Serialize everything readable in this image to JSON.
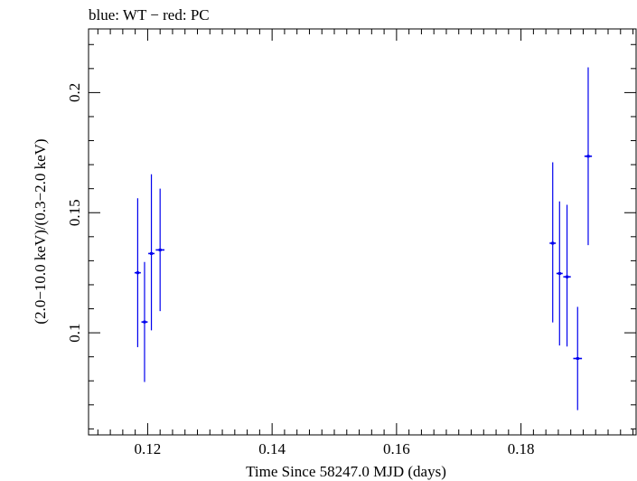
{
  "chart_data": {
    "type": "scatter",
    "title": "blue: WT − red: PC",
    "xlabel": "Time Since 58247.0 MJD (days)",
    "ylabel": "(2.0−10.0 keV)/(0.3−2.0 keV)",
    "xlim": [
      0.1105,
      0.1985
    ],
    "ylim": [
      0.0575,
      0.2265
    ],
    "x_ticks": [
      0.12,
      0.14,
      0.16,
      0.18
    ],
    "x_tick_labels": [
      "0.12",
      "0.14",
      "0.16",
      "0.18"
    ],
    "y_ticks": [
      0.1,
      0.15,
      0.2
    ],
    "y_tick_labels": [
      "0.1",
      "0.15",
      "0.2"
    ],
    "grid": false,
    "series": [
      {
        "name": "WT",
        "color": "#0000ee",
        "points": [
          {
            "x": 0.1184,
            "xerr": 0.0005,
            "y": 0.125,
            "yerr_low": 0.031,
            "yerr_high": 0.031
          },
          {
            "x": 0.1195,
            "xerr": 0.0005,
            "y": 0.1045,
            "yerr_low": 0.025,
            "yerr_high": 0.025
          },
          {
            "x": 0.1206,
            "xerr": 0.0005,
            "y": 0.133,
            "yerr_low": 0.032,
            "yerr_high": 0.033
          },
          {
            "x": 0.122,
            "xerr": 0.0007,
            "y": 0.1345,
            "yerr_low": 0.0255,
            "yerr_high": 0.0255
          },
          {
            "x": 0.1851,
            "xerr": 0.0005,
            "y": 0.1373,
            "yerr_low": 0.033,
            "yerr_high": 0.0337
          },
          {
            "x": 0.1862,
            "xerr": 0.0005,
            "y": 0.1247,
            "yerr_low": 0.03,
            "yerr_high": 0.03
          },
          {
            "x": 0.1874,
            "xerr": 0.0006,
            "y": 0.1233,
            "yerr_low": 0.029,
            "yerr_high": 0.03
          },
          {
            "x": 0.1891,
            "xerr": 0.0007,
            "y": 0.0893,
            "yerr_low": 0.0215,
            "yerr_high": 0.0215
          },
          {
            "x": 0.1908,
            "xerr": 0.0006,
            "y": 0.1735,
            "yerr_low": 0.037,
            "yerr_high": 0.037
          }
        ]
      }
    ]
  }
}
